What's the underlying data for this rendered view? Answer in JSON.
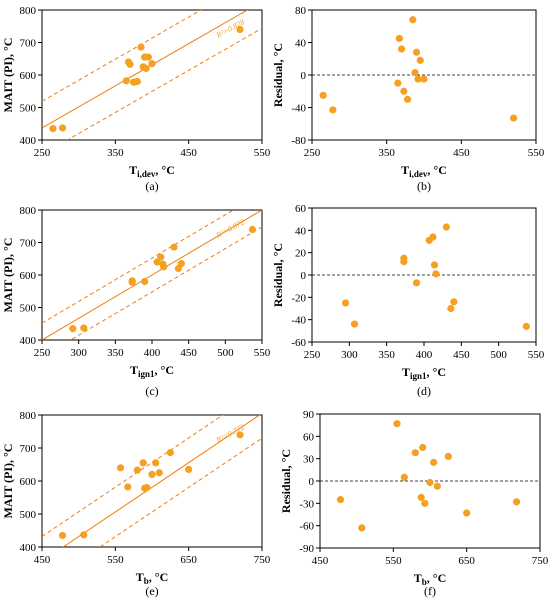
{
  "colors": {
    "point": "#f5a020",
    "fit": "#f07e10",
    "axis": "#000000",
    "zero": "#000000"
  },
  "chart_data": [
    {
      "type": "scatter",
      "panel": "(a)",
      "xlabel_main": "T",
      "xlabel_sub": "i,dev",
      "xlabel_unit": ", °C",
      "ylabel": "MAIT (PI), °C",
      "xlim": [
        250,
        550
      ],
      "ylim": [
        400,
        800
      ],
      "xticks": [
        "250",
        "350",
        "450",
        "550"
      ],
      "yticks": [
        "400",
        "500",
        "600",
        "700",
        "800"
      ],
      "fit_line": [
        [
          250,
          437
        ],
        [
          530,
          800
        ]
      ],
      "band": 82,
      "r2_label": "R²=0.828",
      "x": [
        265,
        278,
        365,
        368,
        370,
        375,
        380,
        385,
        388,
        390,
        392,
        395,
        400,
        520
      ],
      "y": [
        435,
        437,
        582,
        640,
        633,
        578,
        580,
        686,
        625,
        655,
        620,
        655,
        635,
        740
      ]
    },
    {
      "type": "scatter",
      "panel": "(b)",
      "xlabel_main": "T",
      "xlabel_sub": "i,dev",
      "xlabel_unit": ", °C",
      "ylabel": "Residual, °C",
      "xlim": [
        250,
        550
      ],
      "ylim": [
        -80,
        80
      ],
      "xticks": [
        "250",
        "350",
        "450",
        "550"
      ],
      "yticks": [
        "-80",
        "-40",
        "0",
        "40",
        "80"
      ],
      "zero_line": true,
      "x": [
        265,
        278,
        365,
        367,
        370,
        373,
        378,
        385,
        388,
        390,
        392,
        395,
        400,
        520
      ],
      "y": [
        -25,
        -43,
        -10,
        45,
        32,
        -20,
        -30,
        68,
        3,
        28,
        -5,
        18,
        -5,
        -53
      ]
    },
    {
      "type": "scatter",
      "panel": "(c)",
      "xlabel_main": "T",
      "xlabel_sub": "ign1",
      "xlabel_unit": ", °C",
      "ylabel": "MAIT (PI), °C",
      "xlim": [
        250,
        550
      ],
      "ylim": [
        400,
        800
      ],
      "xticks": [
        "250",
        "300",
        "350",
        "400",
        "450",
        "500",
        "550"
      ],
      "yticks": [
        "400",
        "500",
        "600",
        "700",
        "800"
      ],
      "fit_line": [
        [
          250,
          400
        ],
        [
          550,
          800
        ]
      ],
      "band": 52,
      "r2_label": "R²=0.872",
      "x": [
        292,
        307,
        373,
        373,
        390,
        407,
        412,
        415,
        416,
        430,
        436,
        440,
        537
      ],
      "y": [
        435,
        437,
        582,
        578,
        580,
        640,
        655,
        633,
        625,
        686,
        620,
        635,
        740
      ]
    },
    {
      "type": "scatter",
      "panel": "(d)",
      "xlabel_main": "T",
      "xlabel_sub": "ign1",
      "xlabel_unit": ", °C",
      "ylabel": "Residual, °C",
      "xlim": [
        250,
        550
      ],
      "ylim": [
        -60,
        60
      ],
      "xticks": [
        "250",
        "300",
        "350",
        "400",
        "450",
        "500",
        "550"
      ],
      "yticks": [
        "-60",
        "-40",
        "-20",
        "0",
        "20",
        "40",
        "60"
      ],
      "zero_line": true,
      "x": [
        295,
        307,
        373,
        373,
        390,
        407,
        412,
        414,
        416,
        430,
        436,
        440,
        537
      ],
      "y": [
        -25,
        -44,
        12,
        15,
        -7,
        31,
        34,
        9,
        1,
        43,
        -30,
        -24,
        -46
      ]
    },
    {
      "type": "scatter",
      "panel": "(e)",
      "xlabel_main": "T",
      "xlabel_sub": "b",
      "xlabel_unit": ", °C",
      "ylabel": "MAIT (PI), °C",
      "xlim": [
        450,
        750
      ],
      "ylim": [
        400,
        800
      ],
      "xticks": [
        "450",
        "550",
        "650",
        "750"
      ],
      "yticks": [
        "400",
        "500",
        "600",
        "700",
        "800"
      ],
      "fit_line": [
        [
          450,
          357
        ],
        [
          730,
          775
        ]
      ],
      "band": 75,
      "r2_label": "R²=0.772",
      "x": [
        478,
        507,
        557,
        567,
        580,
        588,
        590,
        593,
        600,
        605,
        610,
        625,
        650,
        720
      ],
      "y": [
        435,
        437,
        640,
        582,
        633,
        655,
        578,
        580,
        620,
        655,
        625,
        686,
        635,
        740
      ]
    },
    {
      "type": "scatter",
      "panel": "(f)",
      "xlabel_main": "T",
      "xlabel_sub": "b",
      "xlabel_unit": ", °C",
      "ylabel": "Residual, °C",
      "xlim": [
        450,
        750
      ],
      "ylim": [
        -90,
        90
      ],
      "xticks": [
        "450",
        "550",
        "650",
        "750"
      ],
      "yticks": [
        "-90",
        "-60",
        "-30",
        "0",
        "30",
        "60",
        "90"
      ],
      "zero_line": true,
      "x": [
        478,
        507,
        555,
        565,
        580,
        588,
        590,
        593,
        600,
        605,
        610,
        625,
        650,
        718
      ],
      "y": [
        -25,
        -63,
        77,
        5,
        38,
        -22,
        45,
        -30,
        -2,
        25,
        -7,
        33,
        -43,
        -28
      ]
    }
  ]
}
